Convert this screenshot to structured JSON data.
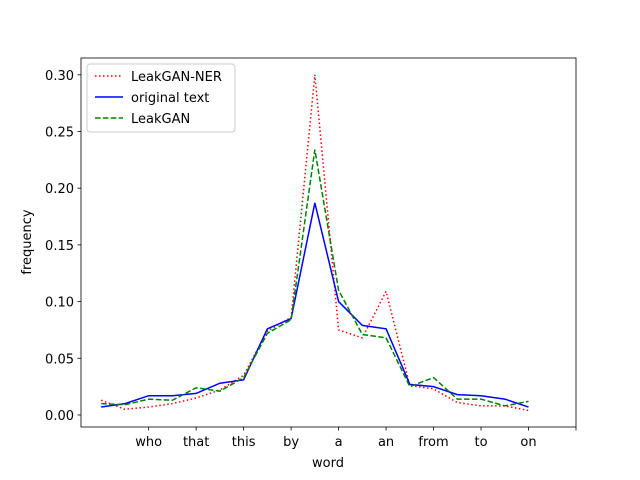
{
  "chart_data": {
    "type": "line",
    "x_label": "word",
    "y_label": "frequency",
    "x": [
      0,
      1,
      2,
      3,
      4,
      5,
      6,
      7,
      8,
      9,
      10,
      11,
      12,
      13,
      14,
      15,
      16,
      17,
      18
    ],
    "xlim": [
      -0.85,
      20
    ],
    "xticks": [
      {
        "value": 2,
        "label": "who"
      },
      {
        "value": 4,
        "label": "that"
      },
      {
        "value": 6,
        "label": "this"
      },
      {
        "value": 8,
        "label": "by"
      },
      {
        "value": 10,
        "label": "a"
      },
      {
        "value": 12,
        "label": "an"
      },
      {
        "value": 14,
        "label": "from"
      },
      {
        "value": 16,
        "label": "to"
      },
      {
        "value": 18,
        "label": "on"
      },
      {
        "value": 20,
        "label": null
      }
    ],
    "ylim": [
      -0.0106,
      0.3148
    ],
    "yticks": [
      {
        "value": 0,
        "label": "0.00"
      },
      {
        "value": 0.05,
        "label": "0.05"
      },
      {
        "value": 0.1,
        "label": "0.10"
      },
      {
        "value": 0.15,
        "label": "0.15"
      },
      {
        "value": 0.2,
        "label": "0.20"
      },
      {
        "value": 0.25,
        "label": "0.25"
      },
      {
        "value": 0.3,
        "label": "0.30"
      }
    ],
    "legend": "upper left",
    "series": [
      {
        "name": "LeakGAN-NER",
        "color": "#ff0000",
        "dash": "dotted",
        "values": [
          0.013,
          0.005,
          0.007,
          0.01,
          0.015,
          0.022,
          0.035,
          0.074,
          0.086,
          0.3,
          0.075,
          0.068,
          0.109,
          0.026,
          0.023,
          0.011,
          0.008,
          0.008,
          0.004
        ]
      },
      {
        "name": "original text",
        "color": "#0000ff",
        "dash": "solid",
        "values": [
          0.007,
          0.01,
          0.017,
          0.017,
          0.019,
          0.028,
          0.031,
          0.076,
          0.085,
          0.187,
          0.1,
          0.079,
          0.076,
          0.027,
          0.025,
          0.018,
          0.017,
          0.014,
          0.007
        ]
      },
      {
        "name": "LeakGAN",
        "color": "#008000",
        "dash": "dashed",
        "values": [
          0.01,
          0.009,
          0.014,
          0.013,
          0.024,
          0.021,
          0.033,
          0.072,
          0.084,
          0.234,
          0.11,
          0.071,
          0.068,
          0.025,
          0.033,
          0.014,
          0.014,
          0.008,
          0.012
        ]
      }
    ]
  }
}
